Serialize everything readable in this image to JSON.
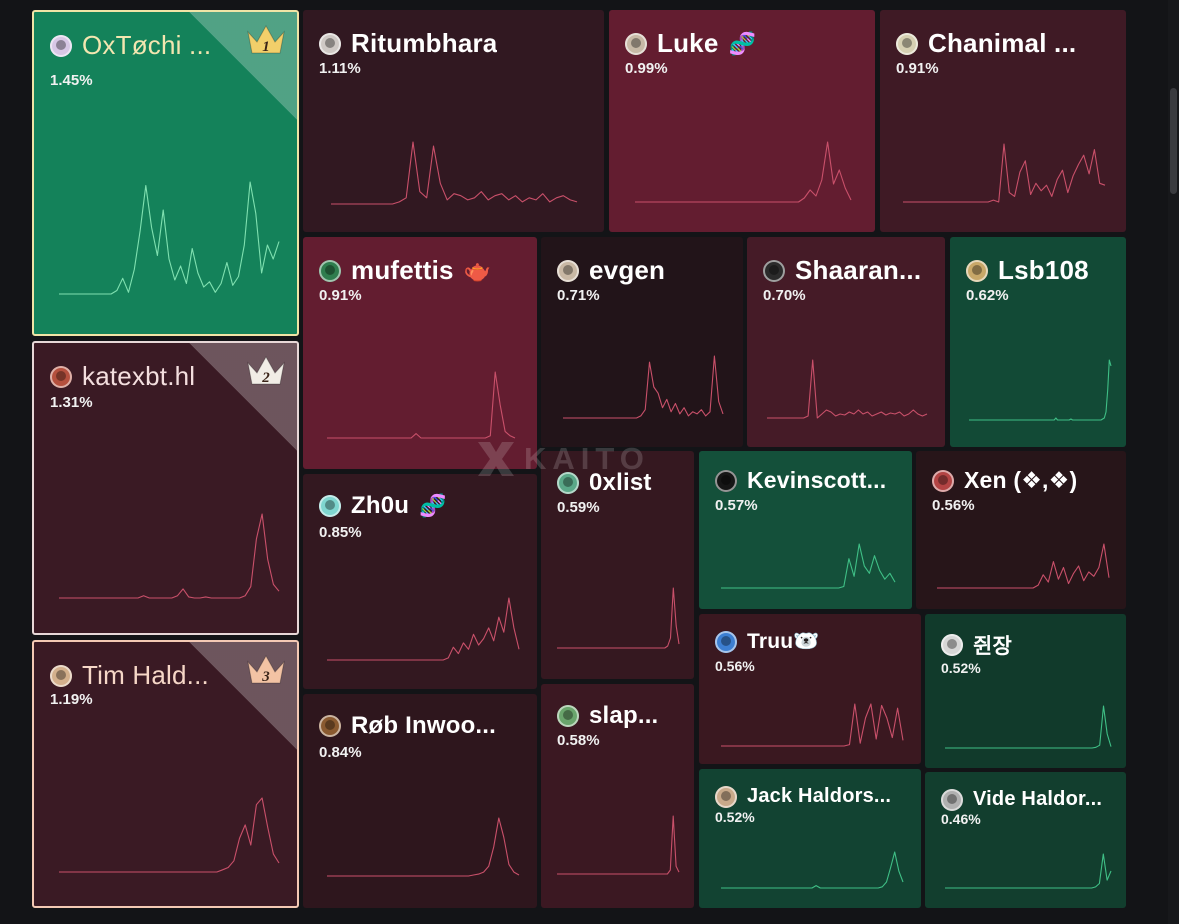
{
  "brand": {
    "watermark": "KAITO",
    "logo_icon": "kaito-x-logo-icon"
  },
  "tiles": [
    {
      "rank": "1",
      "name": "OxTøchi ...",
      "pct": "1.45%",
      "fill": "#14825a",
      "border": "#f0e4a6",
      "name_color": "#f3e6b0",
      "avatar": "#d8c7e6",
      "emoji": "",
      "trend": [
        0,
        0,
        0,
        0,
        0,
        0,
        0,
        0,
        0,
        0,
        2,
        9,
        1,
        14,
        36,
        62,
        38,
        22,
        48,
        20,
        8,
        16,
        6,
        26,
        12,
        4,
        7,
        1,
        6,
        18,
        5,
        10,
        28,
        64,
        46,
        12,
        28,
        20,
        30
      ]
    },
    {
      "rank": "2",
      "name": "katexbt.hl",
      "pct": "1.31%",
      "fill": "#3a1a24",
      "border": "#e7d7d7",
      "name_color": "#f3dede",
      "avatar": "#b5503e",
      "emoji": "",
      "trend": [
        0,
        0,
        0,
        0,
        0,
        0,
        0,
        0,
        0,
        0,
        0,
        0,
        0,
        0,
        0,
        2,
        0,
        0,
        0,
        0,
        0,
        2,
        8,
        1,
        0,
        0,
        1,
        0,
        0,
        0,
        0,
        0,
        0,
        2,
        10,
        52,
        74,
        34,
        12,
        6
      ]
    },
    {
      "rank": "3",
      "name": "Tim Hald...",
      "pct": "1.19%",
      "fill": "#3a1a24",
      "border": "#f4c9b4",
      "name_color": "#f6d7c7",
      "avatar": "#d3b08c",
      "emoji": "",
      "trend": [
        0,
        0,
        0,
        0,
        0,
        0,
        0,
        0,
        0,
        0,
        0,
        0,
        0,
        0,
        0,
        0,
        0,
        0,
        0,
        0,
        0,
        0,
        0,
        0,
        0,
        0,
        0,
        0,
        0,
        2,
        4,
        10,
        30,
        42,
        24,
        60,
        66,
        40,
        16,
        8
      ]
    },
    {
      "rank": "",
      "name": "Ritumbhara",
      "pct": "1.11%",
      "fill": "#311821",
      "border": "",
      "name_color": "#ffffff",
      "avatar": "#cfc9c5",
      "emoji": "",
      "trend": [
        0,
        0,
        0,
        0,
        0,
        0,
        0,
        0,
        0,
        0,
        2,
        6,
        60,
        12,
        6,
        56,
        20,
        4,
        10,
        8,
        4,
        6,
        12,
        4,
        8,
        10,
        4,
        8,
        2,
        6,
        4,
        10,
        2,
        6,
        8,
        4,
        2
      ]
    },
    {
      "rank": "",
      "name": "Luke",
      "pct": "0.99%",
      "fill": "#631d30",
      "border": "",
      "name_color": "#ffffff",
      "avatar": "#c7b9a6",
      "emoji": "🧬",
      "trend": [
        0,
        0,
        0,
        0,
        0,
        0,
        0,
        0,
        0,
        0,
        0,
        0,
        0,
        0,
        0,
        0,
        0,
        0,
        0,
        0,
        0,
        0,
        0,
        0,
        0,
        0,
        0,
        0,
        0,
        4,
        12,
        6,
        22,
        60,
        18,
        32,
        14,
        2
      ]
    },
    {
      "rank": "",
      "name": "Chanimal ...",
      "pct": "0.91%",
      "fill": "#3f1a25",
      "border": "",
      "name_color": "#ffffff",
      "avatar": "#d6d0b2",
      "emoji": "",
      "trend": [
        0,
        0,
        0,
        0,
        0,
        0,
        0,
        0,
        0,
        0,
        0,
        0,
        0,
        0,
        0,
        0,
        0,
        2,
        0,
        62,
        10,
        6,
        32,
        44,
        8,
        20,
        12,
        18,
        6,
        24,
        34,
        10,
        28,
        40,
        50,
        30,
        56,
        20,
        18
      ]
    },
    {
      "rank": "",
      "name": "mufettis",
      "pct": "0.91%",
      "fill": "#631d30",
      "border": "",
      "name_color": "#ffffff",
      "avatar": "#2f7d4e",
      "emoji": "🫖",
      "trend": [
        0,
        0,
        0,
        0,
        0,
        0,
        0,
        0,
        0,
        0,
        0,
        0,
        0,
        0,
        0,
        0,
        0,
        0,
        4,
        0,
        0,
        0,
        0,
        0,
        0,
        0,
        0,
        0,
        0,
        0,
        0,
        0,
        0,
        2,
        60,
        30,
        6,
        2,
        0
      ]
    },
    {
      "rank": "",
      "name": "evgen",
      "pct": "0.71%",
      "fill": "#221419",
      "border": "",
      "name_color": "#ffffff",
      "avatar": "#c9b8a4",
      "emoji": "",
      "trend": [
        0,
        0,
        0,
        0,
        0,
        0,
        0,
        0,
        0,
        0,
        0,
        0,
        0,
        0,
        0,
        0,
        0,
        0,
        2,
        8,
        54,
        30,
        24,
        10,
        18,
        6,
        14,
        4,
        10,
        2,
        6,
        4,
        8,
        2,
        6,
        60,
        16,
        4
      ]
    },
    {
      "rank": "",
      "name": "Shaaran...",
      "pct": "0.70%",
      "fill": "#451b27",
      "border": "",
      "name_color": "#ffffff",
      "avatar": "#2b2b2b",
      "emoji": "",
      "trend": [
        0,
        0,
        0,
        0,
        0,
        0,
        0,
        0,
        0,
        2,
        58,
        0,
        4,
        8,
        6,
        2,
        4,
        3,
        6,
        4,
        8,
        4,
        6,
        2,
        4,
        6,
        3,
        5,
        4,
        6,
        2,
        4,
        8,
        4,
        2,
        4
      ]
    },
    {
      "rank": "",
      "name": "Lsb108",
      "pct": "0.62%",
      "fill": "#124a36",
      "border": "",
      "name_color": "#ffffff",
      "avatar": "#c8a868",
      "emoji": "",
      "trend": [
        0,
        0,
        0,
        0,
        0,
        0,
        0,
        0,
        0,
        0,
        0,
        0,
        0,
        0,
        0,
        0,
        0,
        0,
        0,
        0,
        0,
        0,
        0,
        0,
        0,
        0,
        0,
        0,
        0,
        0,
        0,
        0,
        0,
        0,
        0,
        0,
        0,
        0,
        0,
        0,
        0,
        0,
        0,
        0,
        0,
        0,
        0,
        0,
        0,
        0,
        0,
        0,
        2,
        0,
        0,
        0,
        0,
        0,
        0,
        0,
        0,
        1,
        0,
        0,
        0,
        0,
        0,
        0,
        0,
        0,
        0,
        0,
        0,
        0,
        0,
        0,
        0,
        0,
        0,
        0,
        1,
        2,
        8,
        30,
        60,
        54
      ]
    },
    {
      "rank": "",
      "name": "Zh0u",
      "pct": "0.85%",
      "fill": "#331820",
      "border": "",
      "name_color": "#ffffff",
      "avatar": "#7fd6d0",
      "emoji": "🧬",
      "trend": [
        0,
        0,
        0,
        0,
        0,
        0,
        0,
        0,
        0,
        0,
        0,
        0,
        0,
        0,
        0,
        0,
        0,
        0,
        0,
        0,
        0,
        0,
        0,
        0,
        2,
        12,
        6,
        16,
        10,
        24,
        14,
        20,
        30,
        18,
        40,
        26,
        58,
        30,
        10
      ]
    },
    {
      "rank": "",
      "name": "0xlist",
      "pct": "0.59%",
      "fill": "#351820",
      "border": "",
      "name_color": "#ffffff",
      "avatar": "#5aa888",
      "emoji": "",
      "trend": [
        0,
        0,
        0,
        0,
        0,
        0,
        0,
        0,
        0,
        0,
        0,
        0,
        0,
        0,
        0,
        0,
        0,
        0,
        0,
        0,
        0,
        0,
        0,
        0,
        0,
        0,
        0,
        0,
        0,
        0,
        0,
        0,
        0,
        0,
        0,
        0,
        0,
        0,
        0,
        2,
        10,
        60,
        22,
        4
      ]
    },
    {
      "rank": "",
      "name": "Kevinscott...",
      "pct": "0.57%",
      "fill": "#14503a",
      "border": "",
      "name_color": "#ffffff",
      "avatar": "#161616",
      "emoji": "",
      "trend": [
        0,
        0,
        0,
        0,
        0,
        0,
        0,
        0,
        0,
        0,
        0,
        0,
        0,
        0,
        0,
        0,
        0,
        0,
        0,
        0,
        0,
        0,
        0,
        0,
        2,
        40,
        16,
        60,
        30,
        20,
        44,
        24,
        12,
        20,
        8
      ]
    },
    {
      "rank": "",
      "name": "Xen (❖,❖)",
      "pct": "0.56%",
      "fill": "#271519",
      "border": "",
      "name_color": "#ffffff",
      "avatar": "#b34444",
      "emoji": "",
      "trend": [
        0,
        0,
        0,
        0,
        0,
        0,
        0,
        0,
        0,
        0,
        0,
        0,
        0,
        0,
        0,
        0,
        0,
        0,
        0,
        0,
        4,
        18,
        8,
        36,
        12,
        28,
        6,
        20,
        30,
        10,
        22,
        16,
        28,
        60,
        14
      ]
    },
    {
      "rank": "",
      "name": "Røb Inwoo...",
      "pct": "0.84%",
      "fill": "#2e161d",
      "border": "",
      "name_color": "#ffffff",
      "avatar": "#8a5a30",
      "emoji": "",
      "trend": [
        0,
        0,
        0,
        0,
        0,
        0,
        0,
        0,
        0,
        0,
        0,
        0,
        0,
        0,
        0,
        0,
        0,
        0,
        0,
        0,
        0,
        0,
        0,
        0,
        0,
        0,
        0,
        0,
        0,
        1,
        2,
        4,
        10,
        30,
        60,
        40,
        12,
        4,
        1
      ]
    },
    {
      "rank": "",
      "name": "slap...",
      "pct": "0.58%",
      "fill": "#3b1822",
      "border": "",
      "name_color": "#ffffff",
      "avatar": "#6aa56c",
      "emoji": "",
      "trend": [
        0,
        0,
        0,
        0,
        0,
        0,
        0,
        0,
        0,
        0,
        0,
        0,
        0,
        0,
        0,
        0,
        0,
        0,
        0,
        0,
        0,
        0,
        0,
        0,
        0,
        0,
        0,
        0,
        0,
        0,
        0,
        0,
        0,
        0,
        0,
        0,
        0,
        0,
        0,
        4,
        60,
        8,
        2
      ]
    },
    {
      "rank": "",
      "name": "Truu🐻‍❄️",
      "pct": "0.56%",
      "fill": "#3a1820",
      "border": "",
      "name_color": "#ffffff",
      "avatar": "#3d7fd2",
      "emoji": "",
      "trend": [
        0,
        0,
        0,
        0,
        0,
        0,
        0,
        0,
        0,
        0,
        0,
        0,
        0,
        0,
        0,
        0,
        0,
        0,
        0,
        0,
        0,
        0,
        0,
        0,
        2,
        60,
        4,
        40,
        60,
        10,
        58,
        40,
        12,
        54,
        8
      ]
    },
    {
      "rank": "",
      "name": "쥔장",
      "pct": "0.52%",
      "fill": "#113a2b",
      "border": "",
      "name_color": "#ffffff",
      "avatar": "#d7d7d7",
      "emoji": "",
      "trend": [
        0,
        0,
        0,
        0,
        0,
        0,
        0,
        0,
        0,
        0,
        0,
        0,
        0,
        0,
        0,
        0,
        0,
        0,
        0,
        0,
        0,
        0,
        0,
        0,
        0,
        0,
        0,
        0,
        0,
        0,
        0,
        0,
        0,
        0,
        0,
        0,
        0,
        0,
        0,
        0,
        1,
        4,
        60,
        20,
        2
      ]
    },
    {
      "rank": "",
      "name": "Jack Haldors...",
      "pct": "0.52%",
      "fill": "#124332",
      "border": "",
      "name_color": "#ffffff",
      "avatar": "#c9a98a",
      "emoji": "",
      "trend": [
        0,
        0,
        0,
        0,
        0,
        0,
        0,
        0,
        0,
        0,
        0,
        0,
        0,
        0,
        0,
        0,
        0,
        0,
        0,
        0,
        0,
        0,
        0,
        4,
        0,
        0,
        0,
        0,
        0,
        0,
        0,
        0,
        0,
        0,
        0,
        0,
        0,
        0,
        0,
        2,
        10,
        34,
        60,
        28,
        10
      ]
    },
    {
      "rank": "",
      "name": "Vide Haldor...",
      "pct": "0.46%",
      "fill": "#123e2e",
      "border": "",
      "name_color": "#ffffff",
      "avatar": "#b0b0b0",
      "emoji": "",
      "trend": [
        0,
        0,
        0,
        0,
        0,
        0,
        0,
        0,
        0,
        0,
        0,
        0,
        0,
        0,
        0,
        0,
        0,
        0,
        0,
        0,
        0,
        0,
        0,
        0,
        0,
        0,
        0,
        0,
        0,
        0,
        0,
        0,
        0,
        0,
        0,
        0,
        0,
        0,
        0,
        2,
        8,
        60,
        14,
        30
      ]
    }
  ]
}
